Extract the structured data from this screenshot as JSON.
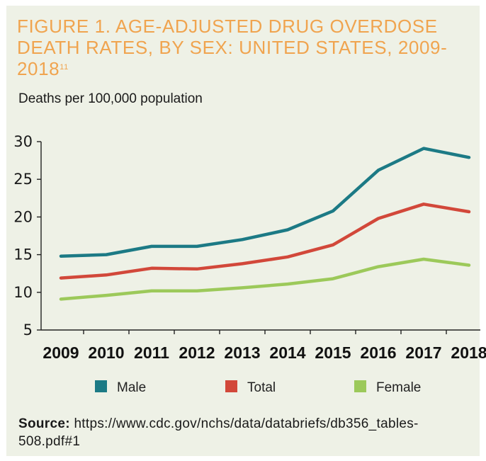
{
  "figure": {
    "title": "FIGURE 1. AGE-ADJUSTED DRUG OVERDOSE DEATH RATES, BY SEX: UNITED STATES, 2009-2018",
    "title_superscript": "11",
    "source_label": "Source:",
    "source_url": "https://www.cdc.gov/nchs/data/databriefs/db356_tables-508.pdf#1"
  },
  "colors": {
    "title": "#f0a44f",
    "background": "#eef1e6",
    "male": "#1c7a85",
    "total": "#d2483a",
    "female": "#9cc95a"
  },
  "chart_data": {
    "type": "line",
    "title": "FIGURE 1. AGE-ADJUSTED DRUG OVERDOSE DEATH RATES, BY SEX: UNITED STATES, 2009-2018",
    "xlabel": "",
    "ylabel": "Deaths per 100,000 population",
    "categories": [
      "2009",
      "2010",
      "2011",
      "2012",
      "2013",
      "2014",
      "2015",
      "2016",
      "2017",
      "2018"
    ],
    "ylim": [
      5,
      30
    ],
    "yticks": [
      5,
      10,
      15,
      20,
      25,
      30
    ],
    "grid": false,
    "legend_position": "bottom",
    "series": [
      {
        "name": "Male",
        "color": "#1c7a85",
        "values": [
          14.8,
          15.0,
          16.1,
          16.1,
          17.0,
          18.3,
          20.8,
          26.2,
          29.1,
          27.9
        ]
      },
      {
        "name": "Total",
        "color": "#d2483a",
        "values": [
          11.9,
          12.3,
          13.2,
          13.1,
          13.8,
          14.7,
          16.3,
          19.8,
          21.7,
          20.7
        ]
      },
      {
        "name": "Female",
        "color": "#9cc95a",
        "values": [
          9.1,
          9.6,
          10.2,
          10.2,
          10.6,
          11.1,
          11.8,
          13.4,
          14.4,
          13.6
        ]
      }
    ]
  }
}
